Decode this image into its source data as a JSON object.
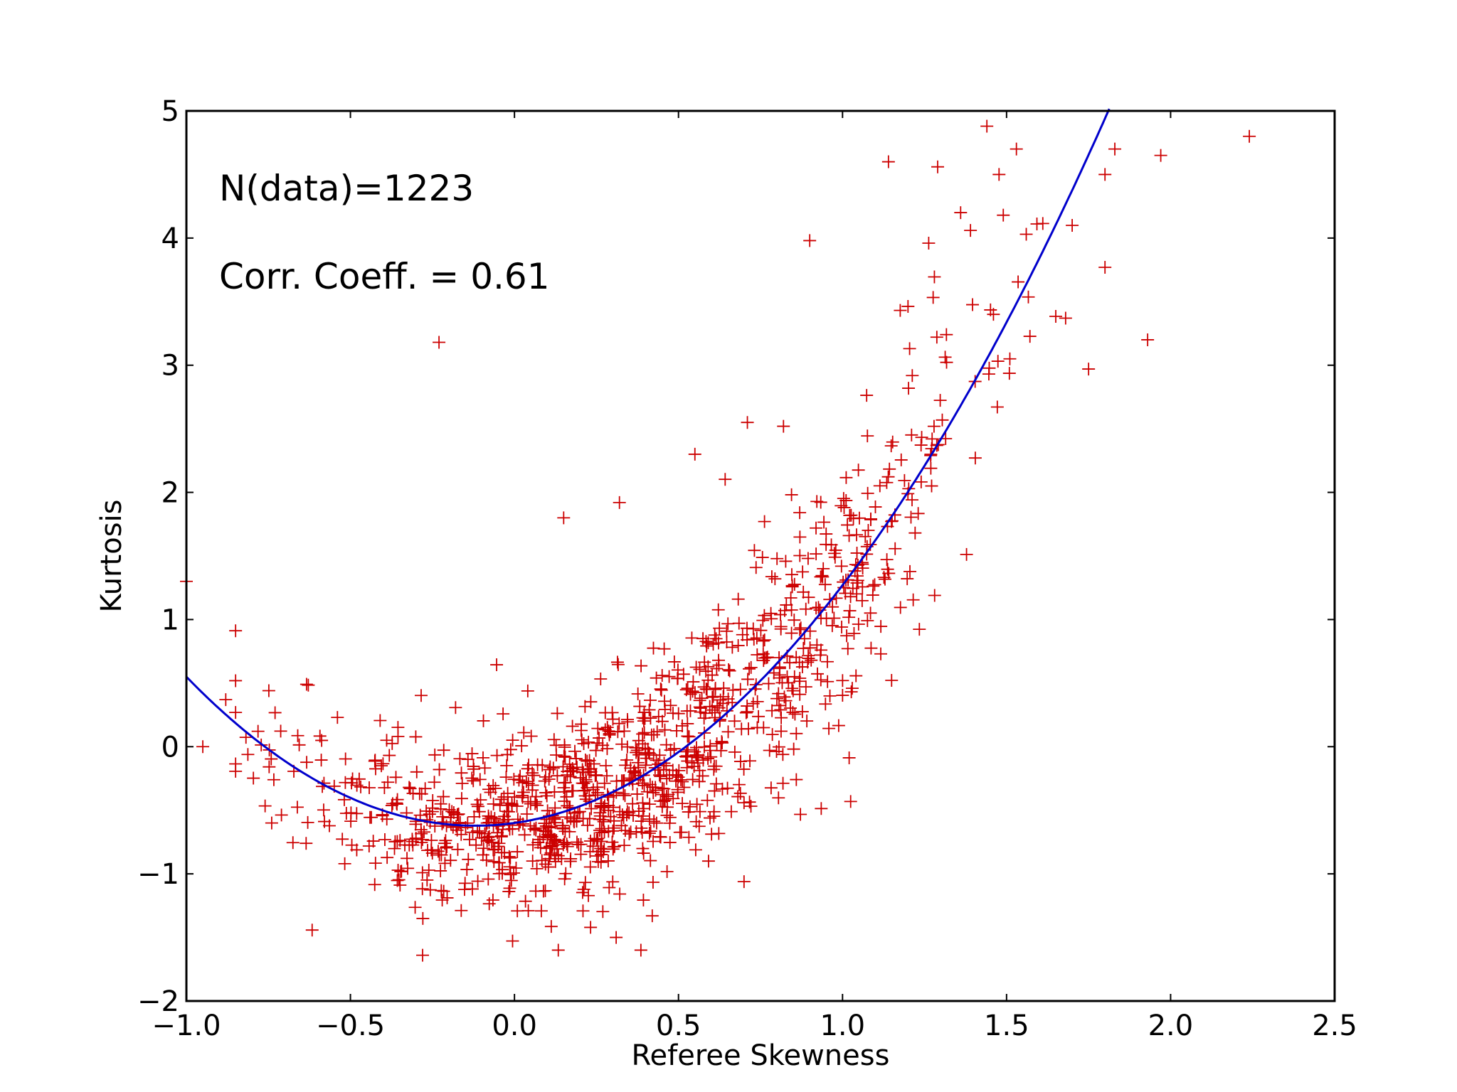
{
  "chart_data": {
    "type": "scatter",
    "title": "",
    "xlabel": "Referee Skewness",
    "ylabel": "Kurtosis",
    "xlim": [
      -1.0,
      2.5
    ],
    "ylim": [
      -2,
      5
    ],
    "xticks": [
      -1.0,
      -0.5,
      0.0,
      0.5,
      1.0,
      1.5,
      2.0,
      2.5
    ],
    "xtick_labels": [
      "−1.0",
      "−0.5",
      "0.0",
      "0.5",
      "1.0",
      "1.5",
      "2.0",
      "2.5"
    ],
    "yticks": [
      -2,
      -1,
      0,
      1,
      2,
      3,
      4,
      5
    ],
    "ytick_labels": [
      "−2",
      "−1",
      "0",
      "1",
      "2",
      "3",
      "4",
      "5"
    ],
    "grid": false,
    "legend": "none",
    "annotations": [
      "N(data)=1223",
      "Corr. Coeff. = 0.61"
    ],
    "marker": "+",
    "marker_color": "#cc0000",
    "fit_color": "#0000cc",
    "fit": {
      "type": "quadratic",
      "coefficients": [
        -0.6,
        0.36,
        1.51
      ],
      "x_range": [
        -1.0,
        1.9
      ]
    },
    "n_points": 1223,
    "outliers": [
      [
        -0.23,
        3.18
      ],
      [
        -1.0,
        1.3
      ],
      [
        -0.95,
        0.0
      ],
      [
        -0.88,
        0.37
      ],
      [
        -0.74,
        -0.6
      ],
      [
        0.15,
        1.8
      ],
      [
        0.32,
        1.92
      ],
      [
        0.9,
        3.98
      ],
      [
        1.14,
        4.6
      ],
      [
        1.29,
        4.56
      ],
      [
        1.44,
        4.88
      ],
      [
        1.53,
        4.7
      ],
      [
        1.49,
        4.18
      ],
      [
        1.56,
        4.03
      ],
      [
        1.39,
        4.06
      ],
      [
        1.36,
        4.2
      ],
      [
        1.7,
        4.1
      ],
      [
        1.8,
        4.5
      ],
      [
        1.83,
        4.7
      ],
      [
        1.97,
        4.65
      ],
      [
        2.24,
        4.8
      ],
      [
        1.8,
        3.77
      ],
      [
        1.68,
        3.37
      ],
      [
        1.75,
        2.97
      ],
      [
        1.46,
        3.4
      ],
      [
        1.51,
        3.05
      ],
      [
        1.93,
        3.2
      ],
      [
        0.71,
        2.55
      ],
      [
        0.55,
        2.3
      ],
      [
        0.82,
        2.52
      ],
      [
        -0.28,
        -1.64
      ],
      [
        0.31,
        -1.5
      ],
      [
        0.42,
        -1.33
      ]
    ]
  }
}
